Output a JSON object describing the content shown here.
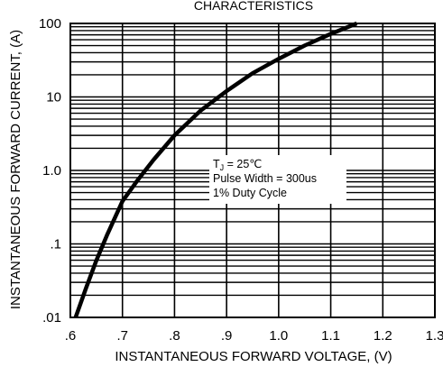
{
  "chart_data": {
    "type": "line",
    "title": "CHARACTERISTICS",
    "xlabel": "INSTANTANEOUS FORWARD VOLTAGE, (V)",
    "ylabel": "INSTANTANEOUS FORWARD CURRENT, (A)",
    "xlim": [
      0.6,
      1.3
    ],
    "ylim": [
      0.01,
      100
    ],
    "yscale": "log",
    "grid": true,
    "x_ticks": [
      0.6,
      0.7,
      0.8,
      0.9,
      1.0,
      1.1,
      1.2,
      1.3
    ],
    "x_tick_labels": [
      ".6",
      ".7",
      ".8",
      ".9",
      "1.0",
      "1.1",
      "1.2",
      "1.3"
    ],
    "y_ticks": [
      0.01,
      0.1,
      1,
      10,
      100
    ],
    "y_tick_labels": [
      ".01",
      ".1",
      "1.0",
      "10",
      "100"
    ],
    "series": [
      {
        "x": [
          0.61,
          0.63,
          0.65,
          0.67,
          0.7,
          0.73,
          0.76,
          0.8,
          0.85,
          0.9,
          0.95,
          1.0,
          1.05,
          1.1,
          1.15
        ],
        "y": [
          0.01,
          0.025,
          0.06,
          0.13,
          0.38,
          0.75,
          1.4,
          3.0,
          6.5,
          12,
          21,
          33,
          50,
          72,
          100
        ]
      }
    ],
    "annotation": {
      "tj_label": "T",
      "tj_sub": "J",
      "tj_value": " = 25℃",
      "line2": "Pulse Width = 300us",
      "line3": "1% Duty Cycle"
    }
  }
}
